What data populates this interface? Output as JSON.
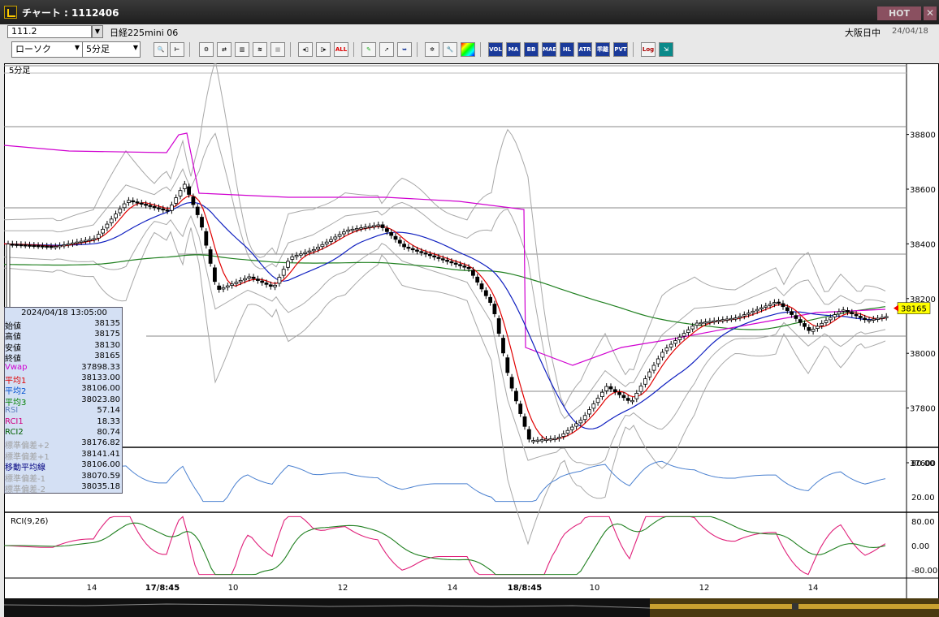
{
  "window": {
    "title": "チャート : 1112406",
    "hot_label": "HOT",
    "close_label": "✕"
  },
  "toolbar1": {
    "code_value": "111.2",
    "symbol": "日経225mini 06",
    "status": "大阪日中",
    "date": "24/04/18"
  },
  "toolbar2": {
    "chart_type": "ローソク",
    "interval": "5分足",
    "buttons": [
      "VOL",
      "MA",
      "BB",
      "MAE",
      "HL",
      "ATR",
      "乖離",
      "PVT",
      "Log"
    ],
    "all_label": "ALL"
  },
  "chart": {
    "interval_label": "5分足",
    "price_axis": [
      "38600",
      "38400",
      "38200",
      "38000",
      "37800",
      "37600",
      "38800"
    ],
    "current_price": "38165",
    "rsi_axis": [
      "80.00",
      "20.00"
    ],
    "rci_axis": [
      "80.00",
      "0.00",
      "-80.00"
    ],
    "rci_label": "RCI(9,26)",
    "time_axis": [
      "14",
      "17/8:45",
      "10",
      "12",
      "14",
      "18/8:45",
      "10",
      "12",
      "14"
    ]
  },
  "info": {
    "datetime": "2024/04/18  13:05:00",
    "rows": [
      {
        "label": "始値",
        "value": "38135",
        "color": "#000000"
      },
      {
        "label": "高値",
        "value": "38175",
        "color": "#000000"
      },
      {
        "label": "安値",
        "value": "38130",
        "color": "#000000"
      },
      {
        "label": "終値",
        "value": "38165",
        "color": "#000000"
      },
      {
        "label": "Vwap",
        "value": "37898.33",
        "color": "#d000d0"
      },
      {
        "label": "平均1",
        "value": "38133.00",
        "color": "#e00000"
      },
      {
        "label": "平均2",
        "value": "38106.00",
        "color": "#0050d0"
      },
      {
        "label": "平均3",
        "value": "38023.80",
        "color": "#008000"
      },
      {
        "label": "RSI",
        "value": "57.14",
        "color": "#6080c0"
      },
      {
        "label": "RCI1",
        "value": "18.33",
        "color": "#d00080"
      },
      {
        "label": "RCI2",
        "value": "80.74",
        "color": "#006000"
      },
      {
        "label": "標準偏差+2",
        "value": "38176.82",
        "color": "#a0a0a0"
      },
      {
        "label": "標準偏差+1",
        "value": "38141.41",
        "color": "#a0a0a0"
      },
      {
        "label": "移動平均線",
        "value": "38106.00",
        "color": "#000080"
      },
      {
        "label": "標準偏差-1",
        "value": "38070.59",
        "color": "#a0a0a0"
      },
      {
        "label": "標準偏差-2",
        "value": "38035.18",
        "color": "#a0a0a0"
      }
    ]
  },
  "colors": {
    "ma1": "#e00000",
    "ma2": "#1020c0",
    "ma3": "#208020",
    "vwap": "#d000d0",
    "bb": "#a8a8a8",
    "rsi": "#4a80d0",
    "rci1": "#e0207a",
    "rci2": "#208020",
    "price_tag": "#ffff00"
  }
}
